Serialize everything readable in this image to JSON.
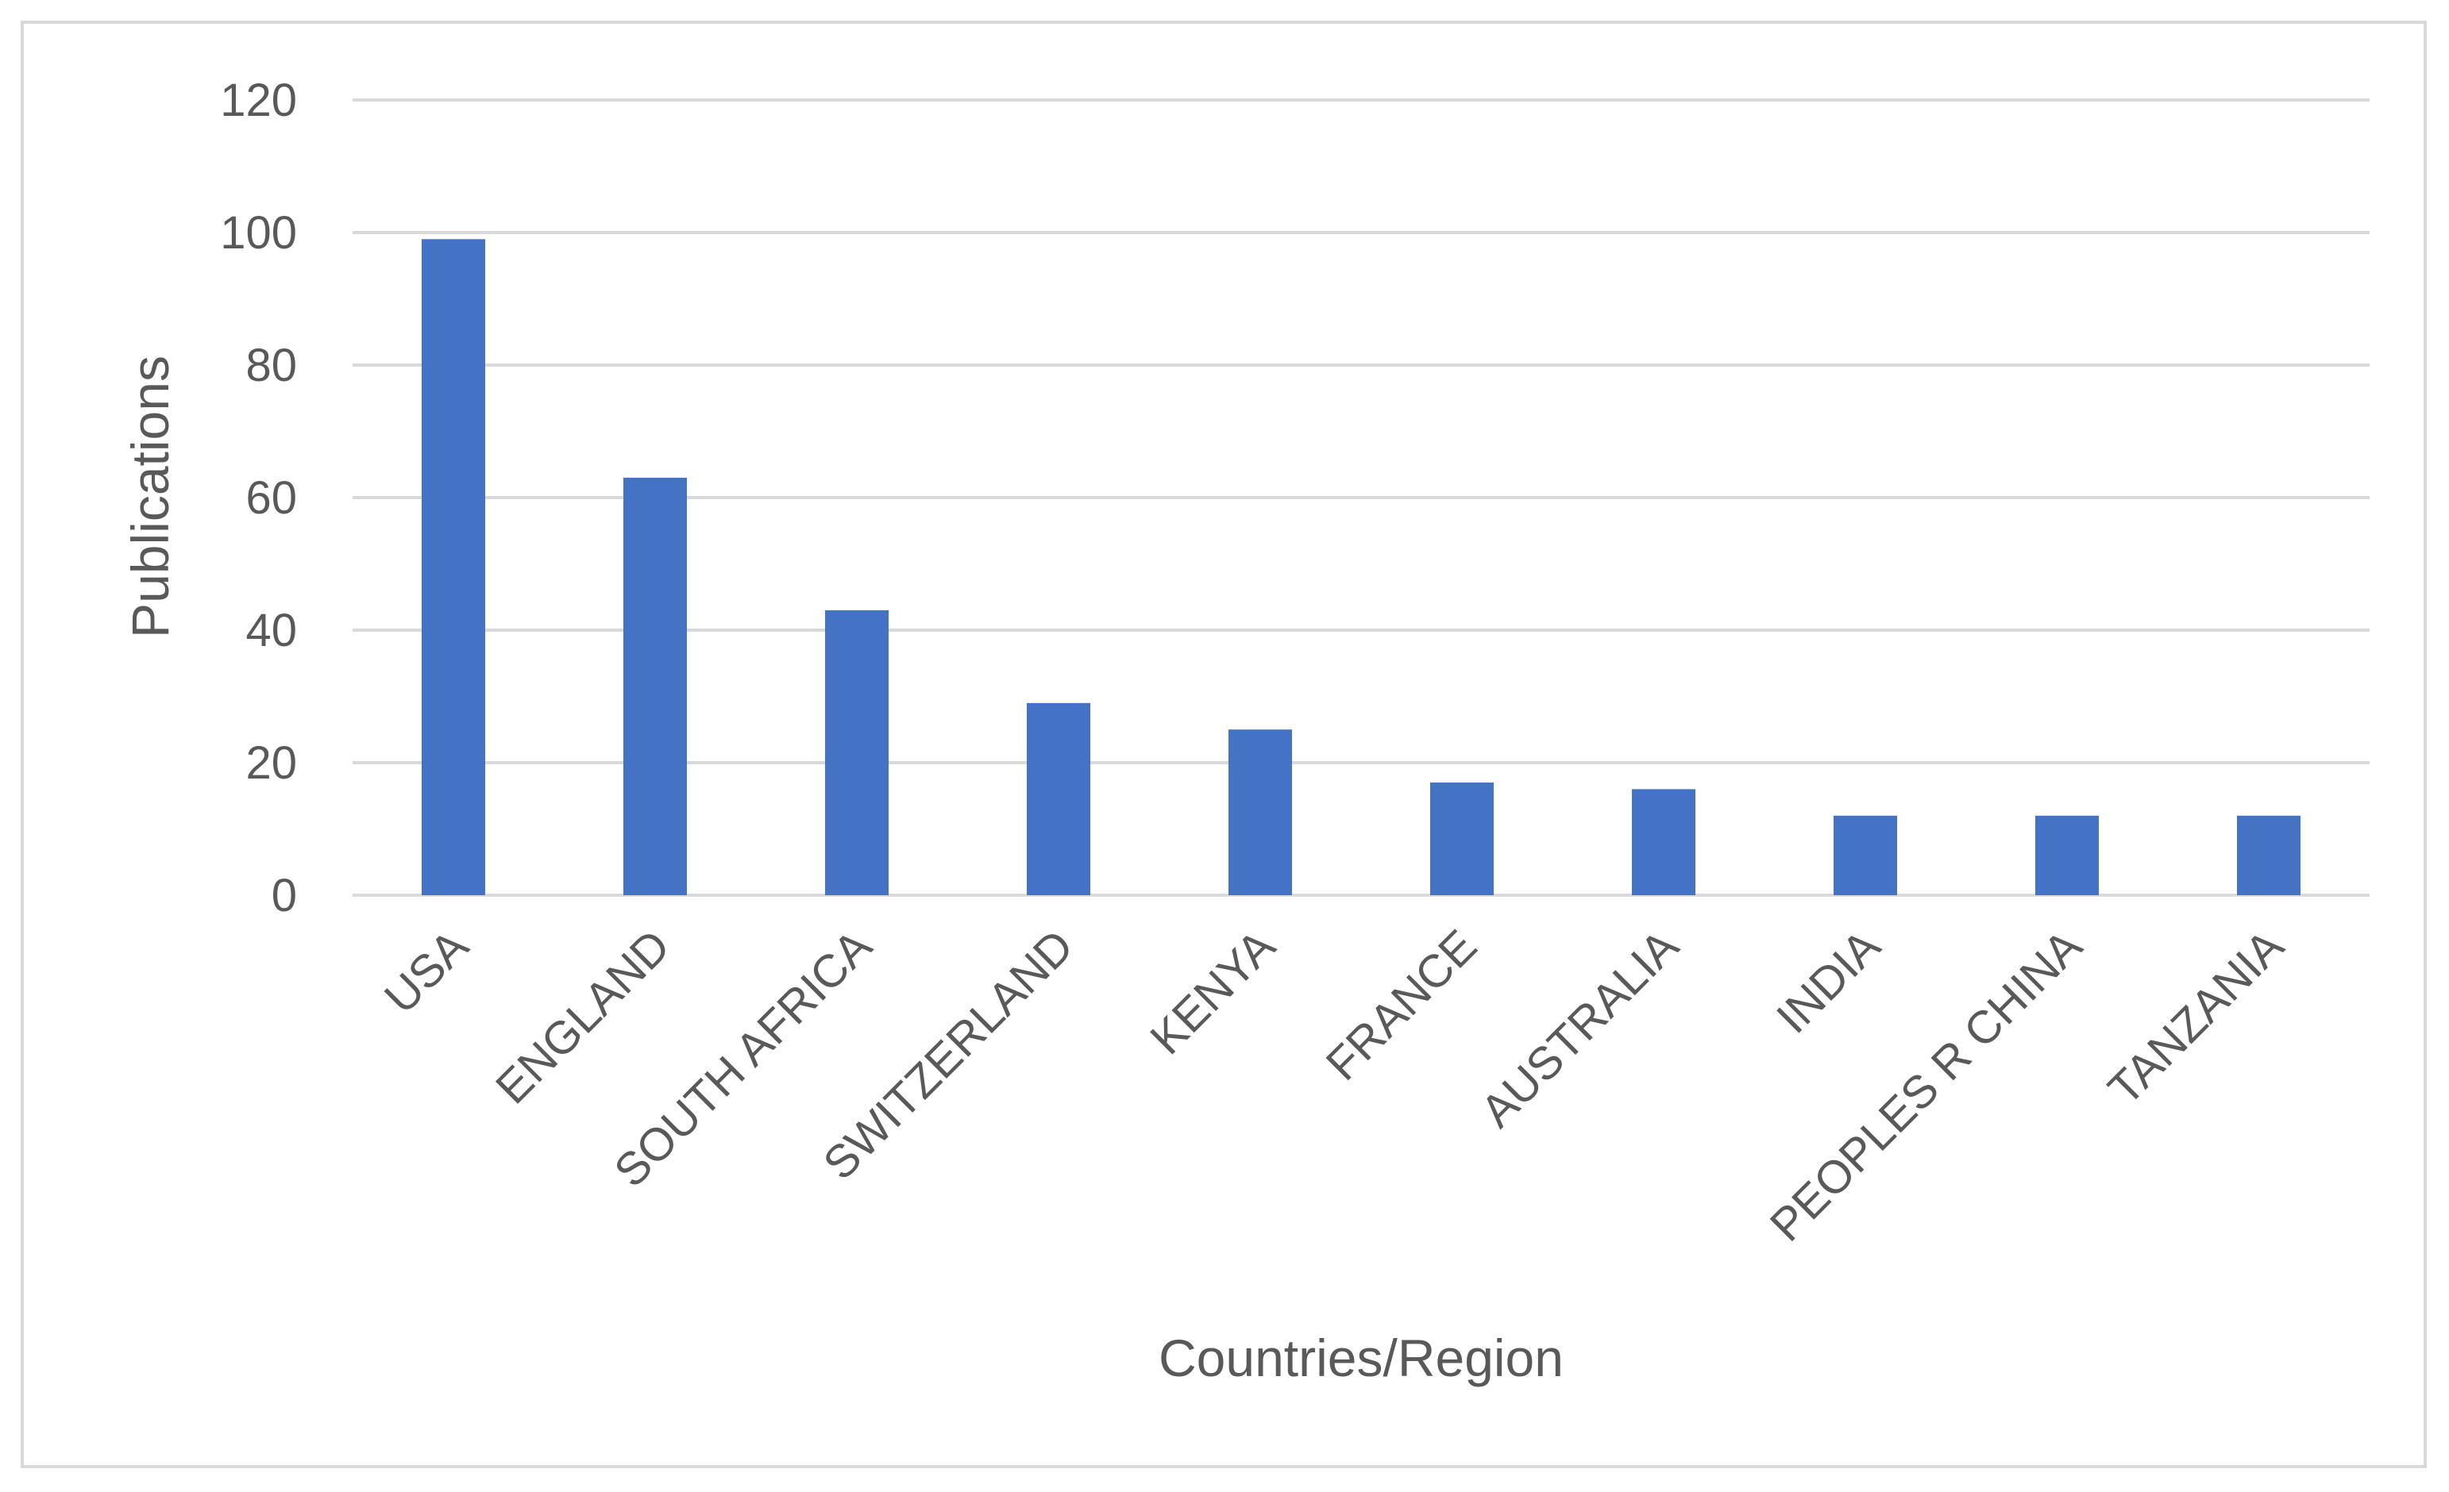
{
  "chart_data": {
    "type": "bar",
    "title": "",
    "xlabel": "Countries/Region",
    "ylabel": "Publications",
    "categories": [
      "USA",
      "ENGLAND",
      "SOUTH AFRICA",
      "SWITZERLAND",
      "KENYA",
      "FRANCE",
      "AUSTRALIA",
      "INDIA",
      "PEOPLES R CHINA",
      "TANZANIA"
    ],
    "values": [
      99,
      63,
      43,
      29,
      25,
      17,
      16,
      12,
      12,
      12
    ],
    "ylim": [
      0,
      120
    ],
    "yticks": [
      0,
      20,
      40,
      60,
      80,
      100,
      120
    ],
    "grid": true,
    "legend": "none",
    "colors": {
      "bar": "#4472c4",
      "grid": "#d9d9d9",
      "text": "#595959",
      "border": "#d9d9d9"
    }
  }
}
